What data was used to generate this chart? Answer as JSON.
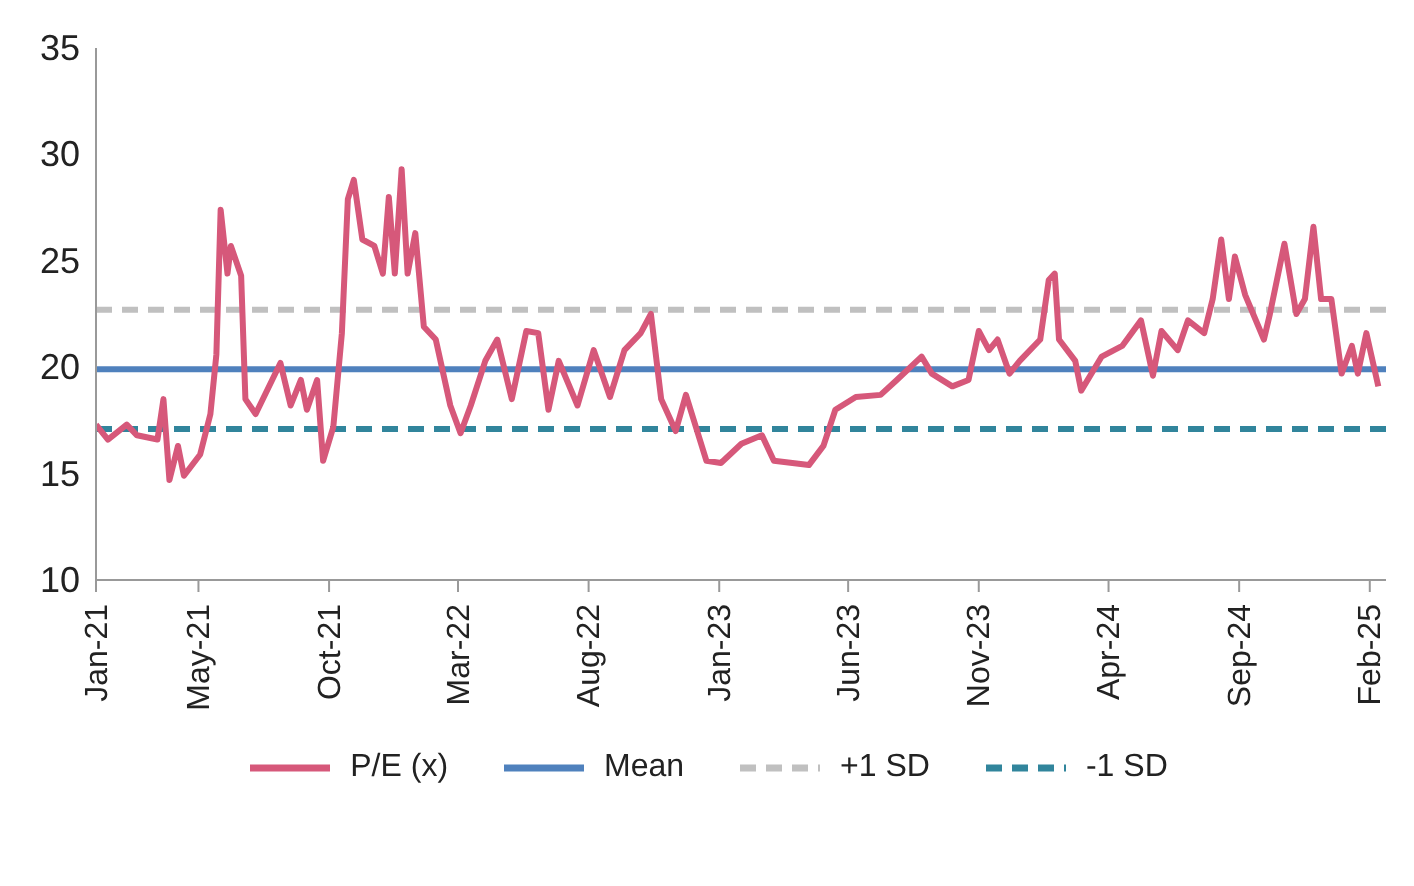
{
  "chart_data": {
    "type": "line",
    "x": [
      "2021-01-01",
      "2021-01-15",
      "2021-02-06",
      "2021-02-18",
      "2021-03-14",
      "2021-03-21",
      "2021-03-28",
      "2021-04-07",
      "2021-04-14",
      "2021-05-03",
      "2021-05-15",
      "2021-05-22",
      "2021-05-27",
      "2021-06-04",
      "2021-06-08",
      "2021-06-20",
      "2021-06-25",
      "2021-07-07",
      "2021-08-05",
      "2021-08-17",
      "2021-08-29",
      "2021-09-05",
      "2021-09-17",
      "2021-09-24",
      "2021-10-06",
      "2021-10-16",
      "2021-10-23",
      "2021-10-30",
      "2021-11-09",
      "2021-11-23",
      "2021-12-03",
      "2021-12-10",
      "2021-12-17",
      "2021-12-25",
      "2022-01-01",
      "2022-01-10",
      "2022-01-20",
      "2022-02-03",
      "2022-02-20",
      "2022-03-04",
      "2022-03-16",
      "2022-04-02",
      "2022-04-16",
      "2022-05-03",
      "2022-05-20",
      "2022-06-03",
      "2022-06-15",
      "2022-06-27",
      "2022-07-19",
      "2022-08-07",
      "2022-08-26",
      "2022-09-12",
      "2022-10-01",
      "2022-10-13",
      "2022-10-25",
      "2022-11-11",
      "2022-11-23",
      "2022-12-17",
      "2023-01-03",
      "2023-01-27",
      "2023-02-20",
      "2023-03-06",
      "2023-04-16",
      "2023-05-03",
      "2023-05-17",
      "2023-06-10",
      "2023-07-09",
      "2023-07-28",
      "2023-08-26",
      "2023-09-07",
      "2023-10-01",
      "2023-10-20",
      "2023-11-01",
      "2023-11-13",
      "2023-11-23",
      "2023-12-07",
      "2023-12-19",
      "2024-01-12",
      "2024-01-22",
      "2024-01-29",
      "2024-02-03",
      "2024-02-22",
      "2024-02-29",
      "2024-03-24",
      "2024-04-17",
      "2024-05-09",
      "2024-05-23",
      "2024-06-02",
      "2024-06-21",
      "2024-07-03",
      "2024-07-22",
      "2024-08-01",
      "2024-08-11",
      "2024-08-20",
      "2024-08-27",
      "2024-09-08",
      "2024-09-30",
      "2024-10-07",
      "2024-10-24",
      "2024-11-07",
      "2024-11-17",
      "2024-11-27",
      "2024-12-06",
      "2024-12-18",
      "2024-12-30",
      "2025-01-11",
      "2025-01-18",
      "2025-01-28",
      "2025-02-11"
    ],
    "series": [
      {
        "name": "P/E (x)",
        "color": "#d6587a",
        "values": [
          17.3,
          16.6,
          17.3,
          16.8,
          16.6,
          18.5,
          14.7,
          16.3,
          14.9,
          15.9,
          17.8,
          20.6,
          27.4,
          24.4,
          25.7,
          24.3,
          18.5,
          17.8,
          20.2,
          18.2,
          19.4,
          18.0,
          19.4,
          15.6,
          17.2,
          21.6,
          27.9,
          28.8,
          26.0,
          25.7,
          24.4,
          28.0,
          24.4,
          29.3,
          24.4,
          26.3,
          21.9,
          21.3,
          18.2,
          16.9,
          18.2,
          20.3,
          21.3,
          18.5,
          21.7,
          21.6,
          18.0,
          20.3,
          18.2,
          20.8,
          18.6,
          20.8,
          21.6,
          22.5,
          18.5,
          17.0,
          18.7,
          15.6,
          15.5,
          16.4,
          16.8,
          15.6,
          15.4,
          16.3,
          18.0,
          18.6,
          18.7,
          19.4,
          20.5,
          19.7,
          19.1,
          19.4,
          21.7,
          20.8,
          21.3,
          19.7,
          20.3,
          21.3,
          24.1,
          24.4,
          21.3,
          20.3,
          18.9,
          20.5,
          21.0,
          22.2,
          19.6,
          21.7,
          20.8,
          22.2,
          21.6,
          23.2,
          26.0,
          23.2,
          25.2,
          23.4,
          21.3,
          22.5,
          25.8,
          22.5,
          23.2,
          26.6,
          23.2,
          23.2,
          19.7,
          21.0,
          19.7,
          21.6,
          19.1
        ]
      }
    ],
    "ref_lines": [
      {
        "axis": "y",
        "value": 19.9,
        "label": "Mean",
        "color": "#4f81bd",
        "line_style": "solid"
      },
      {
        "axis": "y",
        "value": 22.7,
        "label": "+1 SD",
        "color": "#c0c0c0",
        "line_style": "dashed"
      },
      {
        "axis": "y",
        "value": 17.1,
        "label": "-1 SD",
        "color": "#31859c",
        "line_style": "dashed"
      }
    ],
    "xlim": [
      "2021-01-01",
      "2025-02-20"
    ],
    "xticks": [
      {
        "value": "2021-01-01",
        "label": "Jan-21"
      },
      {
        "value": "2021-05-01",
        "label": "May-21"
      },
      {
        "value": "2021-10-01",
        "label": "Oct-21"
      },
      {
        "value": "2022-03-01",
        "label": "Mar-22"
      },
      {
        "value": "2022-08-01",
        "label": "Aug-22"
      },
      {
        "value": "2023-01-01",
        "label": "Jan-23"
      },
      {
        "value": "2023-06-01",
        "label": "Jun-23"
      },
      {
        "value": "2023-11-01",
        "label": "Nov-23"
      },
      {
        "value": "2024-04-01",
        "label": "Apr-24"
      },
      {
        "value": "2024-09-01",
        "label": "Sep-24"
      },
      {
        "value": "2025-02-01",
        "label": "Feb-25"
      }
    ],
    "ylim": [
      10,
      35
    ],
    "yticks": [
      10,
      15,
      20,
      25,
      30,
      35
    ],
    "grid": false,
    "legend": "bottom",
    "marker": "none",
    "line_style": "solid"
  }
}
